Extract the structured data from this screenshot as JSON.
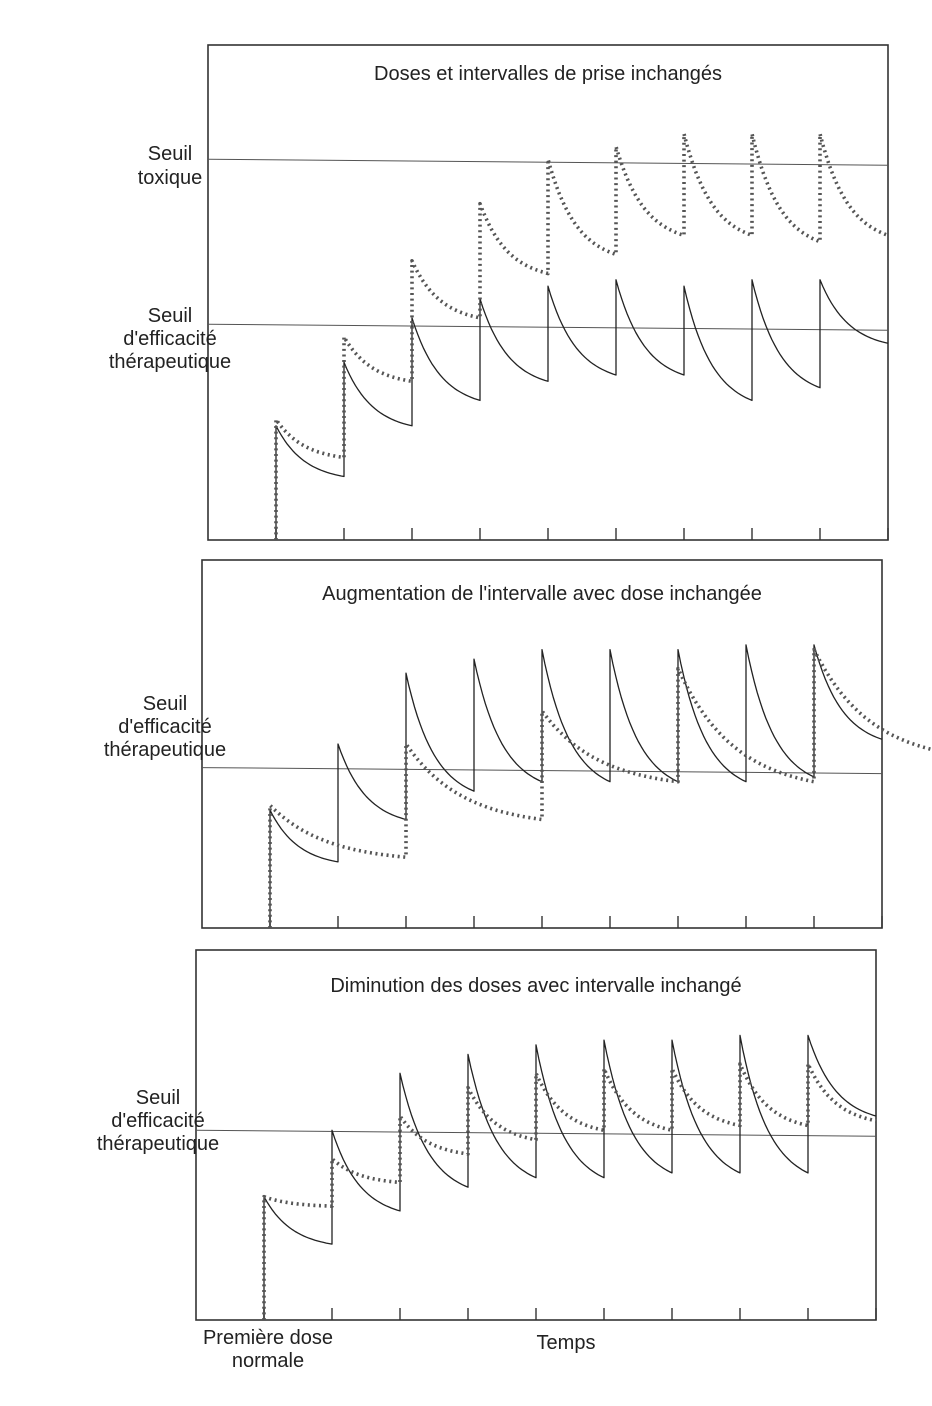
{
  "chart_data": [
    {
      "type": "line",
      "title": "Doses et intervalles de prise inchangés",
      "threshold_labels": {
        "toxic": [
          "Seuil",
          "toxique"
        ],
        "efficacy": [
          "Seuil",
          "d'efficacité",
          "thérapeutique"
        ]
      },
      "thresholds": {
        "toxic": 6.0,
        "efficacy": 3.4
      },
      "ylim": [
        0,
        7.8
      ],
      "xlim": [
        0,
        10
      ],
      "x_ticks": [
        1,
        2,
        3,
        4,
        5,
        6,
        7,
        8,
        9,
        10
      ],
      "series": [
        {
          "style": "solid",
          "dose_interval": 1.0,
          "dose_times": [
            1,
            2,
            3,
            4,
            5,
            6,
            7,
            8,
            9
          ],
          "peaks": [
            1.8,
            2.8,
            3.5,
            3.8,
            4.0,
            4.1,
            4.0,
            4.1,
            4.1
          ],
          "troughs": [
            1.0,
            1.8,
            2.2,
            2.5,
            2.6,
            2.6,
            2.2,
            2.4,
            3.1
          ]
        },
        {
          "style": "dotted",
          "dose_interval": 1.0,
          "dose_times": [
            1,
            2,
            3,
            4,
            5,
            6,
            7,
            8,
            9
          ],
          "peaks": [
            1.9,
            3.2,
            4.4,
            5.3,
            6.0,
            6.2,
            6.4,
            6.4,
            6.4
          ],
          "troughs": [
            1.3,
            2.5,
            3.5,
            4.2,
            4.5,
            4.8,
            4.8,
            4.7,
            4.8
          ]
        }
      ]
    },
    {
      "type": "line",
      "title": "Augmentation de l'intervalle avec dose inchangée",
      "threshold_labels": {
        "efficacy": [
          "Seuil",
          "d'efficacité",
          "thérapeutique"
        ]
      },
      "thresholds": {
        "efficacy": 3.4
      },
      "ylim": [
        0,
        7.8
      ],
      "xlim": [
        0,
        10
      ],
      "x_ticks": [
        1,
        2,
        3,
        4,
        5,
        6,
        7,
        8,
        9,
        10
      ],
      "series": [
        {
          "style": "solid",
          "dose_interval": 1.0,
          "dose_times": [
            1,
            2,
            3,
            4,
            5,
            6,
            7,
            8,
            9
          ],
          "peaks": [
            2.5,
            3.9,
            5.4,
            5.7,
            5.9,
            5.9,
            5.9,
            6.0,
            6.0
          ],
          "troughs": [
            1.4,
            2.3,
            2.9,
            3.1,
            3.1,
            3.1,
            3.1,
            3.2,
            4.0
          ]
        },
        {
          "style": "dotted",
          "dose_interval": 2.0,
          "dose_times": [
            1,
            3,
            5,
            7,
            9
          ],
          "peaks": [
            2.6,
            3.9,
            4.6,
            5.5,
            5.9
          ],
          "troughs": [
            1.5,
            2.3,
            3.1,
            3.1,
            3.7
          ]
        }
      ]
    },
    {
      "type": "line",
      "title": "Diminution des doses avec intervalle inchangé",
      "threshold_labels": {
        "efficacy": [
          "Seuil",
          "d'efficacité",
          "thérapeutique"
        ]
      },
      "thresholds": {
        "efficacy": 4.0
      },
      "ylim": [
        0,
        7.8
      ],
      "xlim": [
        0,
        10
      ],
      "x_ticks": [
        1,
        2,
        3,
        4,
        5,
        6,
        7,
        8,
        9,
        10
      ],
      "xlabel": "Temps",
      "x_start_label": [
        "Première dose",
        "normale"
      ],
      "series": [
        {
          "style": "solid",
          "dose_interval": 1.0,
          "dose_times": [
            1,
            2,
            3,
            4,
            5,
            6,
            7,
            8,
            9
          ],
          "peaks": [
            2.6,
            4.0,
            5.2,
            5.6,
            5.8,
            5.9,
            5.9,
            6.0,
            6.0
          ],
          "troughs": [
            1.6,
            2.3,
            2.8,
            3.0,
            3.0,
            3.1,
            3.1,
            3.1,
            4.3
          ]
        },
        {
          "style": "dotted",
          "dose_interval": 1.0,
          "dose_times": [
            1,
            2,
            3,
            4,
            5,
            6,
            7,
            8,
            9
          ],
          "peaks": [
            2.6,
            3.4,
            4.3,
            4.9,
            5.2,
            5.3,
            5.3,
            5.4,
            5.4
          ],
          "troughs": [
            2.4,
            2.9,
            3.5,
            3.8,
            4.0,
            4.0,
            4.1,
            4.1,
            4.2
          ]
        }
      ]
    }
  ]
}
